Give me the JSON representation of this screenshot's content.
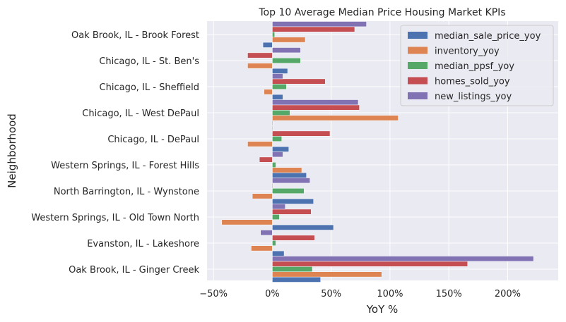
{
  "chart_data": {
    "type": "bar",
    "orientation": "horizontal",
    "title": "Top 10 Average Median Price Housing Market KPIs",
    "xlabel": "YoY %",
    "ylabel": "Neighborhood",
    "xlim": [
      -0.555,
      2.43
    ],
    "xticks": [
      -0.5,
      0,
      0.5,
      1.0,
      1.5,
      2.0
    ],
    "xtick_labels": [
      "−50%",
      "0%",
      "50%",
      "100%",
      "150%",
      "200%"
    ],
    "grid": true,
    "legend_position": "top-right",
    "categories": [
      "Oak Brook, IL - Ginger Creek",
      "Evanston, IL - Lakeshore",
      "Western Springs, IL - Old Town North",
      "North Barrington, IL - Wynstone",
      "Western Springs, IL - Forest Hills",
      "Chicago, IL - DePaul",
      "Chicago, IL - West DePaul",
      "Chicago, IL - Sheffield",
      "Chicago, IL - St. Ben's",
      "Oak Brook, IL - Brook Forest"
    ],
    "series": [
      {
        "name": "median_sale_price_yoy",
        "color": "#4c72b0",
        "values": [
          0.41,
          0.1,
          0.52,
          0.35,
          0.29,
          0.14,
          0.0,
          0.09,
          0.13,
          -0.08
        ]
      },
      {
        "name": "inventory_yoy",
        "color": "#dd8452",
        "values": [
          0.93,
          -0.18,
          -0.43,
          -0.17,
          0.25,
          -0.21,
          1.07,
          -0.07,
          -0.21,
          0.28
        ]
      },
      {
        "name": "median_ppsf_yoy",
        "color": "#55a868",
        "values": [
          0.34,
          0.03,
          0.06,
          0.27,
          0.03,
          0.08,
          0.15,
          0.12,
          0.24,
          0.02
        ]
      },
      {
        "name": "homes_sold_yoy",
        "color": "#c44e52",
        "values": [
          1.66,
          0.36,
          0.33,
          0.0,
          -0.11,
          0.49,
          0.74,
          0.45,
          -0.21,
          0.7
        ]
      },
      {
        "name": "new_listings_yoy",
        "color": "#8172b3",
        "values": [
          2.22,
          -0.1,
          0.11,
          0.32,
          0.09,
          0.0,
          0.73,
          0.09,
          0.24,
          0.8
        ]
      }
    ]
  }
}
